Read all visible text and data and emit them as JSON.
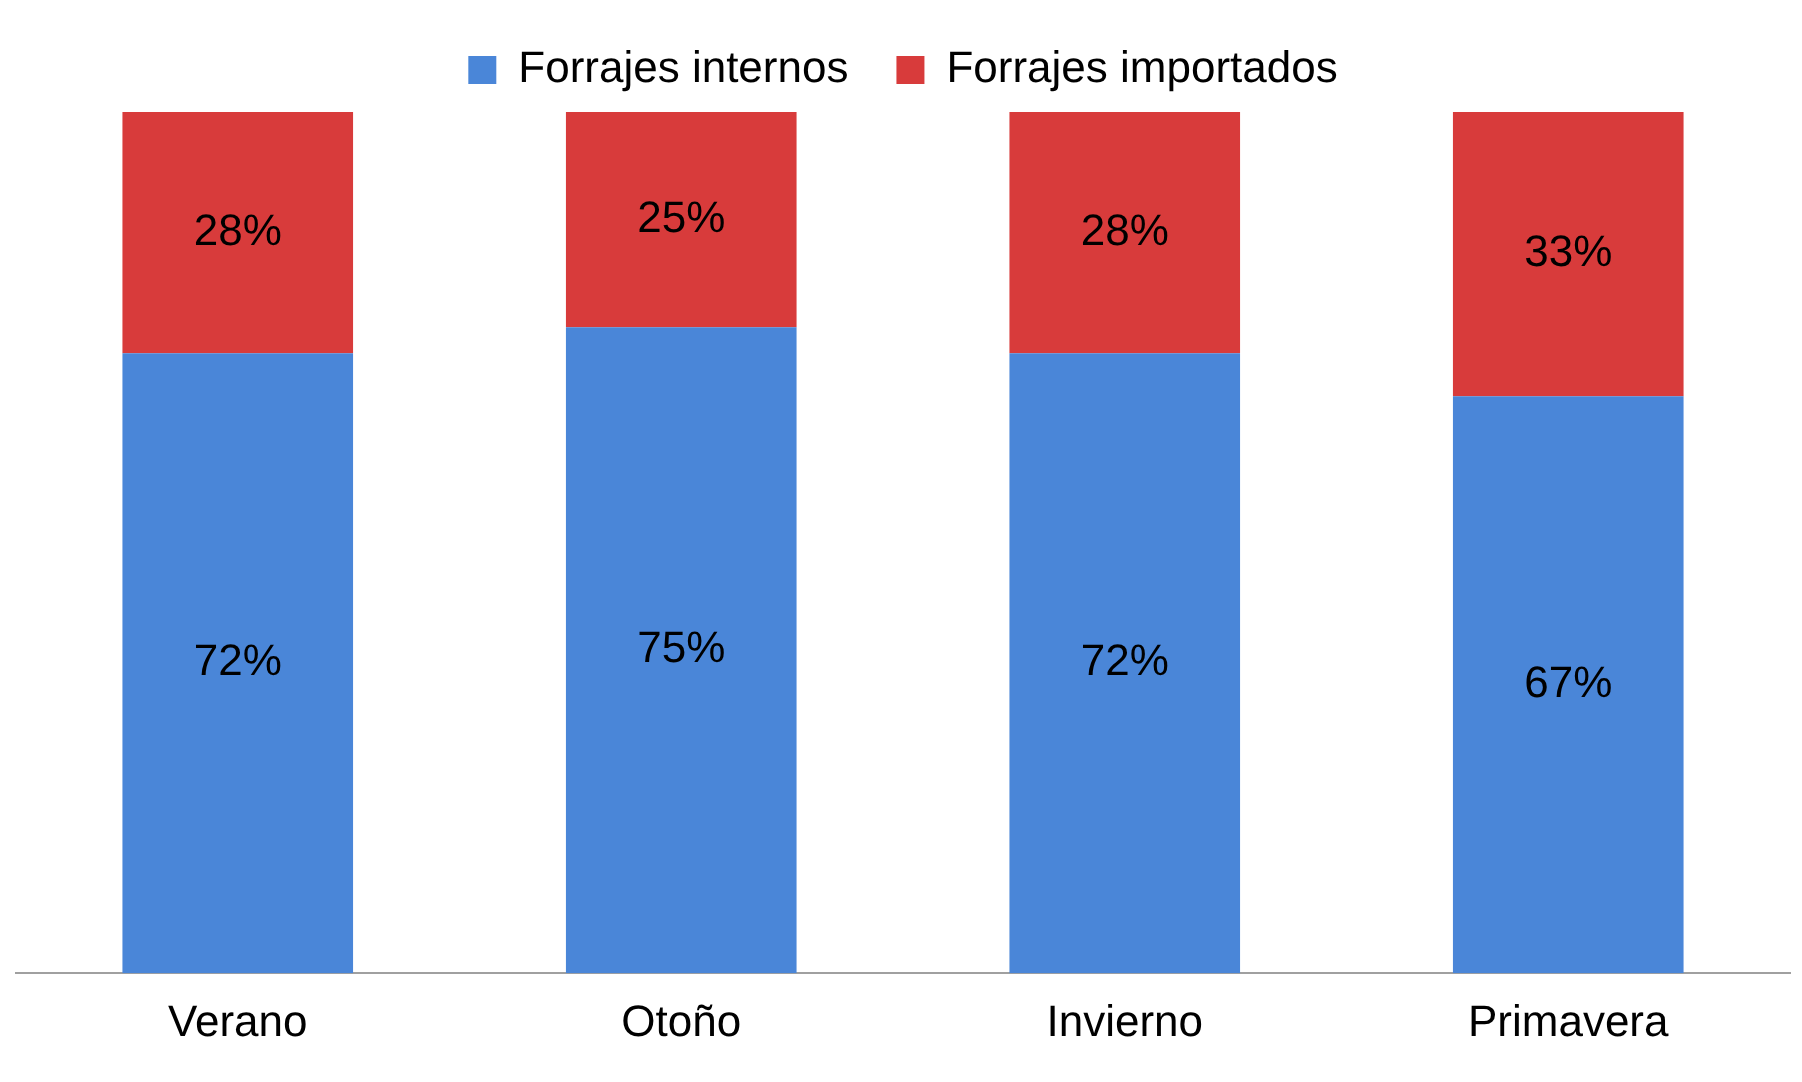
{
  "chart_data": {
    "type": "bar",
    "stacked": true,
    "categories": [
      "Verano",
      "Otoño",
      "Invierno",
      "Primavera"
    ],
    "series": [
      {
        "name": "Forrajes internos",
        "color": "#4a86d8",
        "values": [
          72,
          75,
          72,
          67
        ],
        "value_labels": [
          "72%",
          "75%",
          "72%",
          "67%"
        ]
      },
      {
        "name": "Forrajes importados",
        "color": "#d83b3b",
        "values": [
          28,
          25,
          28,
          33
        ],
        "value_labels": [
          "28%",
          "25%",
          "28%",
          "33%"
        ]
      }
    ],
    "ylim": [
      0,
      100
    ],
    "tick_labels": "x",
    "grid": false,
    "legend": "top"
  }
}
